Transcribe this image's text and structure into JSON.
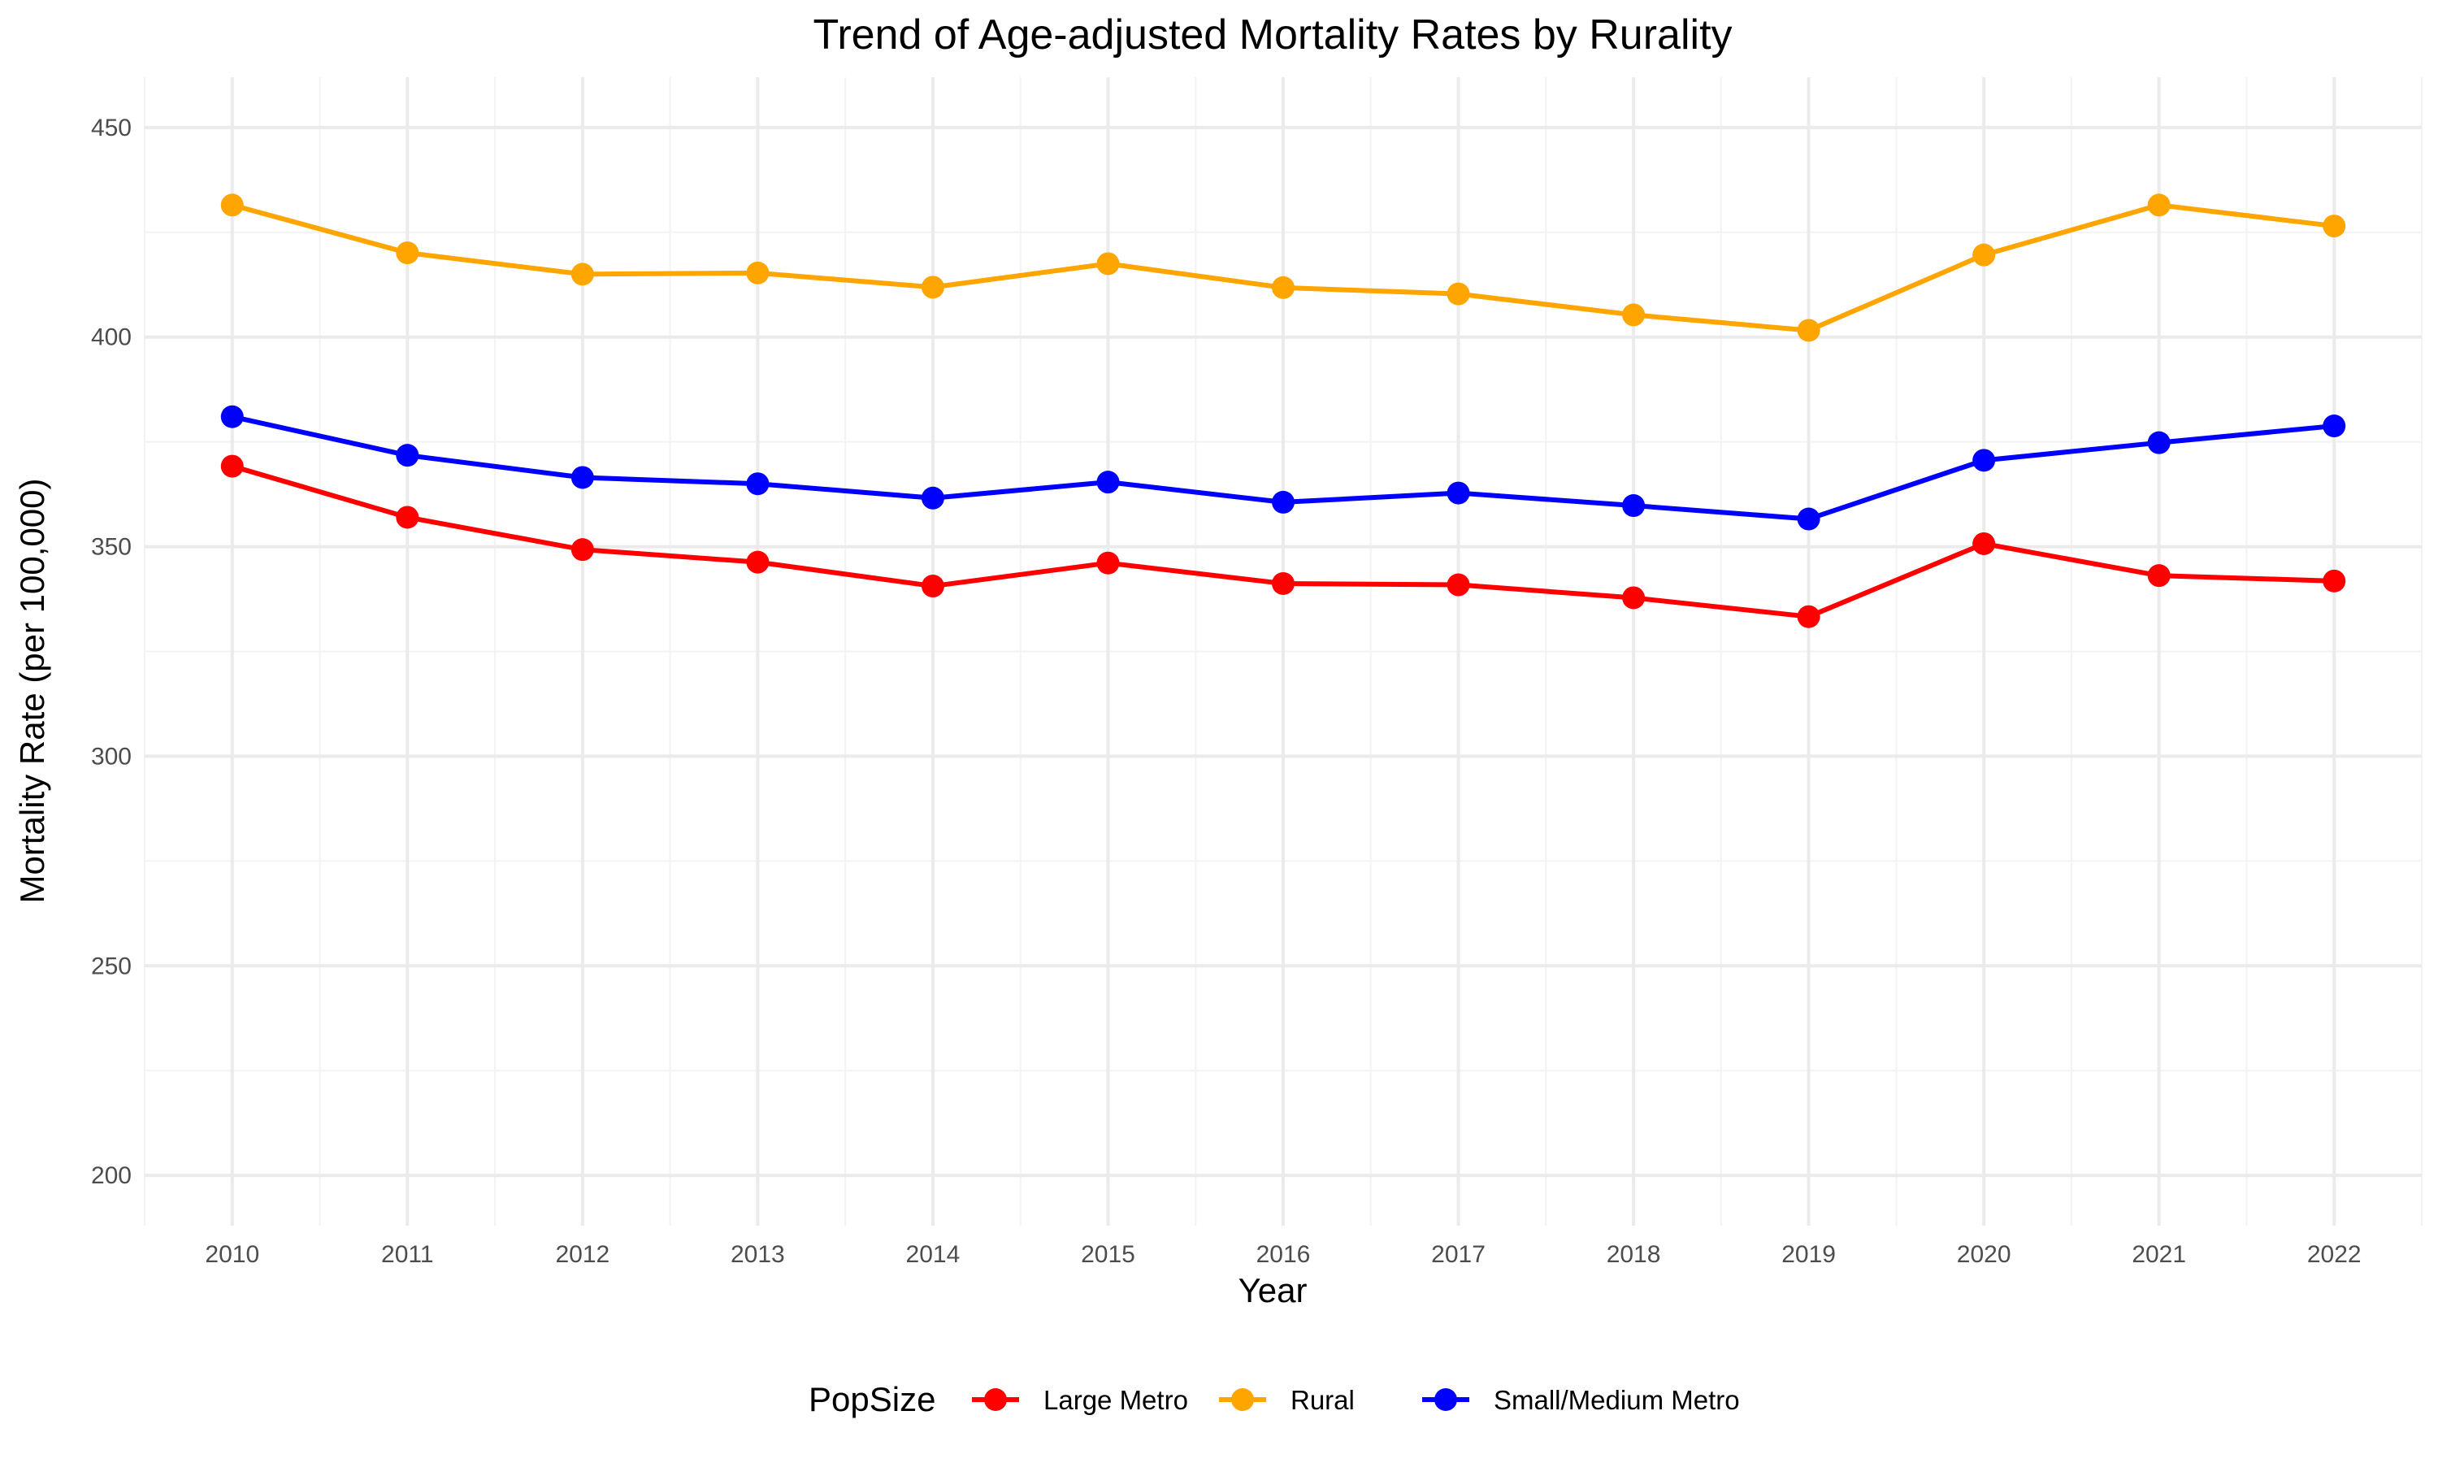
{
  "chart_data": {
    "type": "line",
    "title": "Trend of Age-adjusted Mortality Rates by Rurality",
    "xlabel": "Year",
    "ylabel": "Mortality Rate (per 100,000)",
    "x": [
      2010,
      2011,
      2012,
      2013,
      2014,
      2015,
      2016,
      2017,
      2018,
      2019,
      2020,
      2021,
      2022
    ],
    "x_ticks": [
      "2010",
      "2011",
      "2012",
      "2013",
      "2014",
      "2015",
      "2016",
      "2017",
      "2018",
      "2019",
      "2020",
      "2021",
      "2022"
    ],
    "y_ticks": [
      "200",
      "250",
      "300",
      "350",
      "400",
      "450"
    ],
    "xlim": [
      2009.5,
      2022.5
    ],
    "ylim": [
      188,
      462
    ],
    "grid": true,
    "legend": {
      "title": "PopSize",
      "position": "bottom"
    },
    "series": [
      {
        "name": "Large Metro",
        "color": "#ff0000",
        "values": [
          369.2,
          357.0,
          349.3,
          346.3,
          340.6,
          346.1,
          341.2,
          340.9,
          337.8,
          333.3,
          350.7,
          343.1,
          341.8
        ]
      },
      {
        "name": "Rural",
        "color": "#ffa500",
        "values": [
          431.5,
          420.1,
          415.0,
          415.3,
          411.9,
          417.5,
          411.8,
          410.3,
          405.3,
          401.6,
          419.6,
          431.5,
          426.5
        ]
      },
      {
        "name": "Small/Medium Metro",
        "color": "#0000ff",
        "values": [
          381.0,
          371.8,
          366.5,
          365.0,
          361.6,
          365.4,
          360.6,
          362.8,
          359.8,
          356.6,
          370.6,
          374.8,
          378.8
        ]
      }
    ]
  }
}
